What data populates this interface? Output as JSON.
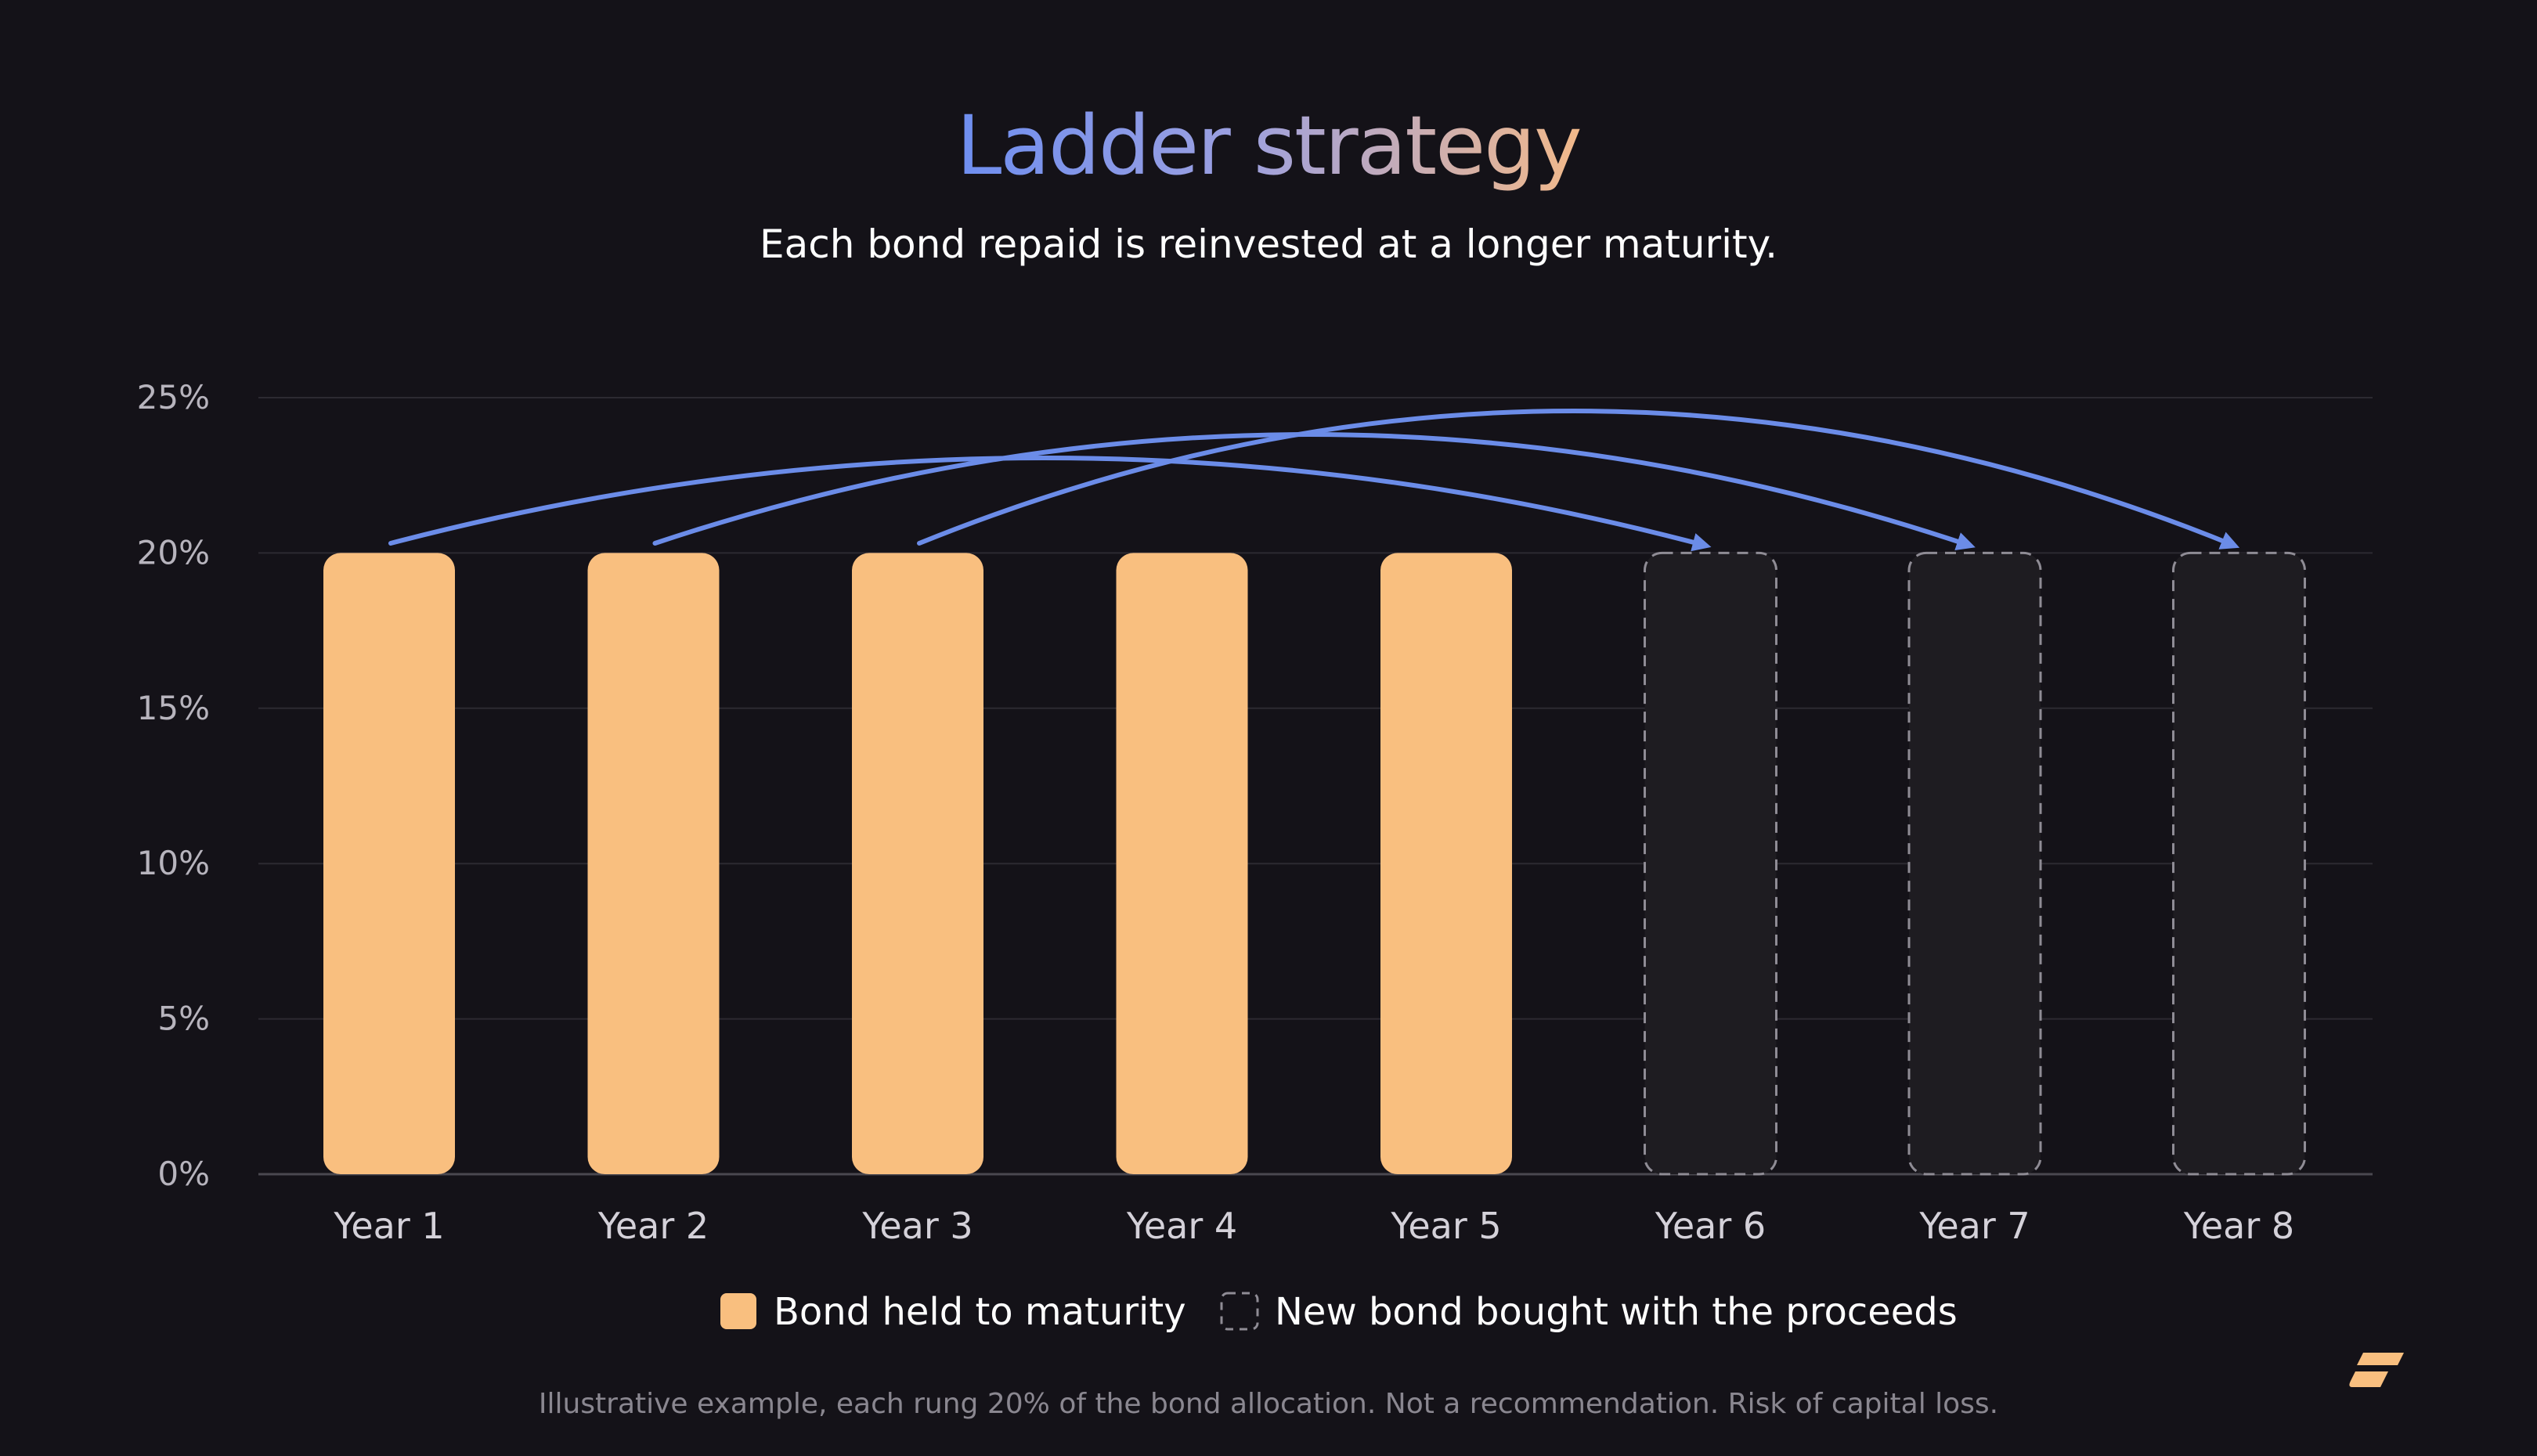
{
  "title": "Ladder strategy",
  "subtitle": "Each bond repaid is reinvested at a longer maturity.",
  "footnote": "Illustrative example, each rung 20% of the bond allocation. Not a recommendation. Risk of capital loss.",
  "legend": {
    "held_label": "Bond held to maturity",
    "new_label": "New bond bought with the proceeds"
  },
  "colors": {
    "background": "#141218",
    "held_bar": "#F9BF7F",
    "new_bar_fill": "#1E1C21",
    "new_bar_border": "#8F8C95",
    "arrow": "#6B8CE8",
    "grid": "#2C2A31",
    "title_gradient": [
      "#6E8EF0",
      "#9A9FE0",
      "#F2B98A"
    ]
  },
  "brand": {
    "logo_icon": "brand-logo-icon"
  },
  "chart_data": {
    "type": "bar",
    "categories": [
      "Year 1",
      "Year 2",
      "Year 3",
      "Year 4",
      "Year 5",
      "Year 6",
      "Year 7",
      "Year 8"
    ],
    "series": [
      {
        "name": "Bond held to maturity",
        "values": [
          20,
          20,
          20,
          20,
          20,
          0,
          0,
          0
        ]
      },
      {
        "name": "New bond bought with the proceeds",
        "values": [
          0,
          0,
          0,
          0,
          0,
          20,
          20,
          20
        ]
      }
    ],
    "yticks": [
      "0%",
      "5%",
      "10%",
      "15%",
      "20%",
      "25%"
    ],
    "ylim": [
      0,
      25
    ],
    "grid": true,
    "legend_position": "bottom",
    "annotations": [
      {
        "type": "arrow",
        "from": "Year 1",
        "to": "Year 6"
      },
      {
        "type": "arrow",
        "from": "Year 2",
        "to": "Year 7"
      },
      {
        "type": "arrow",
        "from": "Year 3",
        "to": "Year 8"
      }
    ]
  }
}
